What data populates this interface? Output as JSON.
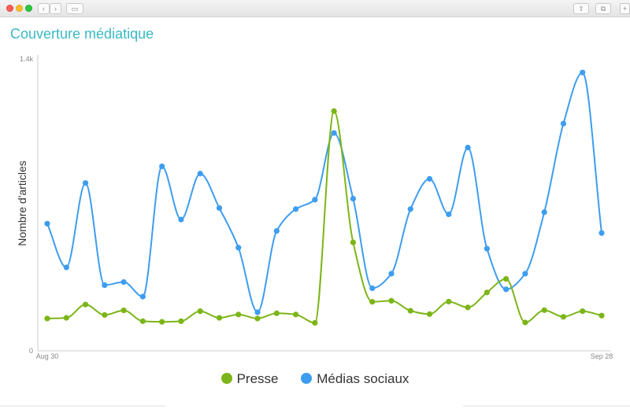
{
  "colors": {
    "presse": "#7cb518",
    "social": "#3d9df0",
    "title": "#3ab9c2"
  },
  "window": {
    "controls": [
      "close",
      "minimize",
      "zoom"
    ],
    "toolbar_icons": [
      "back-arrow",
      "forward-arrow",
      "sidebar-toggle",
      "share",
      "duplicate",
      "add-tab"
    ]
  },
  "chart_data": {
    "type": "line",
    "title": "Couverture médiatique",
    "ylabel": "Nombre d'articles",
    "xlabel": "",
    "ylim": [
      0,
      1400
    ],
    "y_ticks": [
      {
        "value": 0,
        "label": "0"
      },
      {
        "value": 1400,
        "label": "1.4k"
      }
    ],
    "x_tick_labels": [
      {
        "index": 0,
        "label": "Aug 30"
      },
      {
        "index": 29,
        "label": "Sep 28"
      }
    ],
    "grid": false,
    "legend_position": "bottom-center",
    "series": [
      {
        "name": "Presse",
        "color_key": "presse",
        "values": [
          155,
          158,
          222,
          172,
          194,
          142,
          139,
          142,
          190,
          158,
          174,
          155,
          180,
          174,
          134,
          1150,
          520,
          235,
          240,
          192,
          176,
          236,
          208,
          280,
          345,
          136,
          195,
          163,
          190,
          169
        ]
      },
      {
        "name": "Médias sociaux",
        "color_key": "social",
        "values": [
          610,
          400,
          805,
          315,
          330,
          260,
          885,
          630,
          850,
          685,
          495,
          185,
          575,
          680,
          725,
          1045,
          730,
          300,
          370,
          680,
          825,
          655,
          975,
          490,
          295,
          370,
          665,
          1090,
          1335,
          565
        ]
      }
    ]
  }
}
